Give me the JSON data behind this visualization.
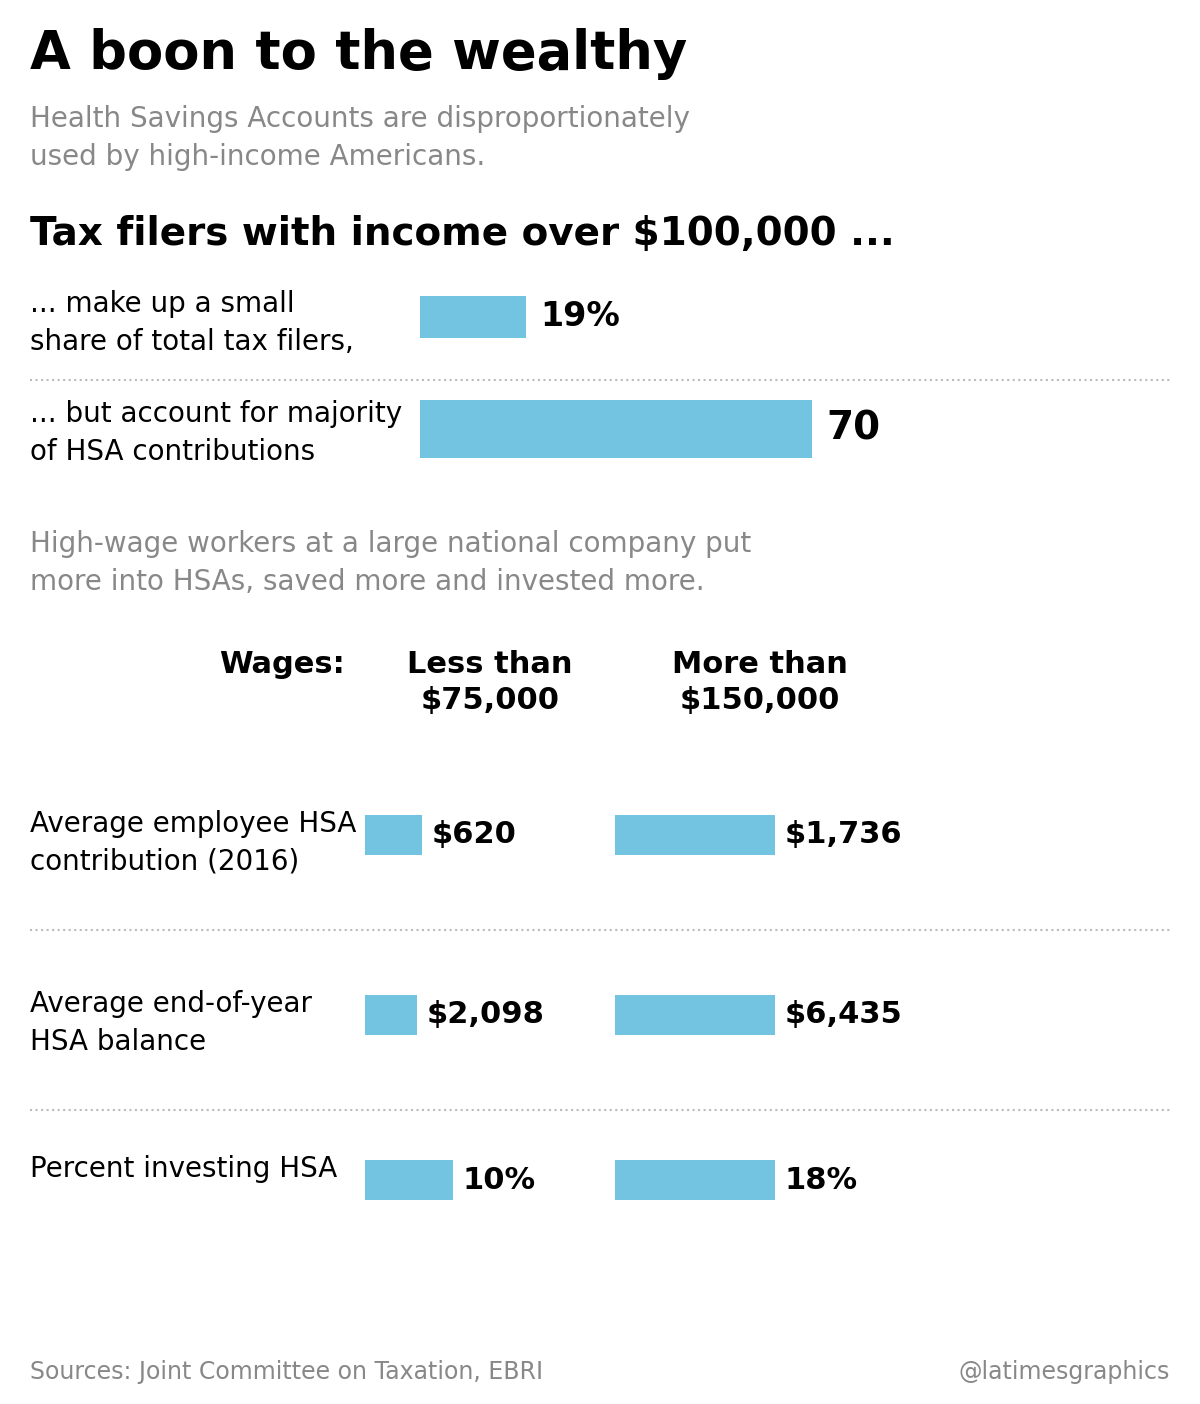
{
  "title": "A boon to the wealthy",
  "subtitle": "Health Savings Accounts are disproportionately\nused by high-income Americans.",
  "section1_header": "Tax filers with income over $100,000 ...",
  "bar1_label": "... make up a small\nshare of total tax filers,",
  "bar1_value": 19,
  "bar1_text": "19%",
  "bar2_label": "... but account for majority\nof HSA contributions",
  "bar2_value": 70,
  "bar2_text": "70",
  "bar_max": 100,
  "bar_color": "#72c4e0",
  "section2_subtitle": "High-wage workers at a large national company put\nmore into HSAs, saved more and invested more.",
  "table_header_wages": "Wages:",
  "table_header_low": "Less than\n$75,000",
  "table_header_high": "More than\n$150,000",
  "rows": [
    {
      "label": "Average employee HSA\ncontribution (2016)",
      "low_value": 620,
      "low_text": "$620",
      "high_value": 1736,
      "high_text": "$1,736",
      "bar_max": 1736
    },
    {
      "label": "Average end-of-year\nHSA balance",
      "low_value": 2098,
      "low_text": "$2,098",
      "high_value": 6435,
      "high_text": "$6,435",
      "bar_max": 6435
    },
    {
      "label": "Percent investing HSA",
      "low_value": 10,
      "low_text": "10%",
      "high_value": 18,
      "high_text": "18%",
      "bar_max": 18
    }
  ],
  "source_text": "Sources: Joint Committee on Taxation, EBRI",
  "credit_text": "@latimesgraphics",
  "bg_color": "#ffffff",
  "text_color": "#000000",
  "gray_color": "#888888",
  "dot_line_color": "#bbbbbb"
}
